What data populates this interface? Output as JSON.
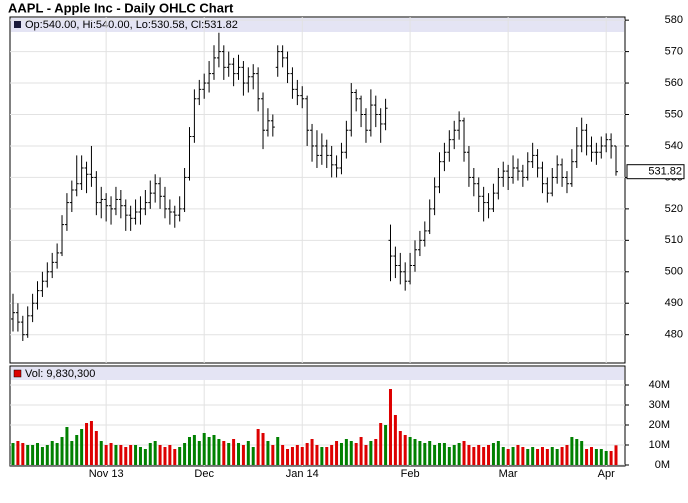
{
  "chart_data": {
    "type": "ohlc",
    "title": "AAPL - Apple Inc - Daily OHLC Chart",
    "price_legend": "Op:540.00, Hi:540.00, Lo:530.58, Cl:531.82",
    "volume_legend": "Vol: 9,830,300",
    "last_price_label": "531.82",
    "categories": [
      null,
      null,
      null,
      null,
      null,
      null,
      null,
      null,
      null,
      null,
      null,
      null,
      null,
      null,
      null,
      null,
      null,
      null,
      null,
      "Nov 13",
      null,
      null,
      null,
      null,
      null,
      null,
      null,
      null,
      null,
      null,
      null,
      null,
      null,
      null,
      null,
      null,
      null,
      null,
      null,
      "Dec",
      null,
      null,
      null,
      null,
      null,
      null,
      null,
      null,
      null,
      null,
      null,
      null,
      null,
      null,
      null,
      null,
      null,
      null,
      null,
      "Jan 14",
      null,
      null,
      null,
      null,
      null,
      null,
      null,
      null,
      null,
      null,
      null,
      null,
      null,
      null,
      null,
      null,
      null,
      null,
      null,
      null,
      null,
      "Feb",
      null,
      null,
      null,
      null,
      null,
      null,
      null,
      null,
      null,
      null,
      null,
      null,
      null,
      null,
      null,
      null,
      null,
      null,
      null,
      "Mar",
      null,
      null,
      null,
      null,
      null,
      null,
      null,
      null,
      null,
      null,
      null,
      null,
      null,
      null,
      null,
      null,
      null,
      null,
      null,
      "Apr",
      null,
      null
    ],
    "open": [
      485,
      487,
      484,
      480,
      486,
      490,
      494,
      497,
      500,
      503,
      506,
      515,
      522,
      526,
      528,
      533,
      531,
      530,
      522,
      523,
      521,
      520,
      523,
      521,
      518,
      517,
      519,
      520,
      522,
      525,
      528,
      524,
      520,
      519,
      518,
      520,
      530,
      543,
      555,
      558,
      560,
      563,
      568,
      570,
      565,
      566,
      563,
      565,
      560,
      562,
      563,
      555,
      545,
      548,
      565,
      570,
      568,
      563,
      558,
      556,
      555,
      545,
      540,
      537,
      540,
      537,
      534,
      533,
      538,
      545,
      557,
      555,
      550,
      545,
      553,
      550,
      547,
      510,
      505,
      502,
      500,
      497,
      502,
      507,
      510,
      513,
      520,
      527,
      535,
      538,
      542,
      545,
      548,
      538,
      530,
      528,
      524,
      522,
      520,
      525,
      530,
      532,
      530,
      533,
      532,
      530,
      535,
      537,
      533,
      528,
      525,
      530,
      534,
      530,
      528,
      535,
      540,
      545,
      540,
      538,
      538,
      540,
      542,
      540
    ],
    "high": [
      493,
      490,
      486,
      489,
      493,
      497,
      500,
      503,
      506,
      509,
      518,
      525,
      529,
      537,
      537,
      535,
      540,
      532,
      527,
      525,
      524,
      527,
      526,
      523,
      521,
      523,
      524,
      526,
      529,
      531,
      530,
      527,
      523,
      521,
      524,
      533,
      546,
      558,
      561,
      563,
      567,
      572,
      576,
      572,
      570,
      568,
      569,
      567,
      565,
      566,
      565,
      557,
      552,
      550,
      572,
      572,
      570,
      565,
      561,
      559,
      556,
      547,
      545,
      544,
      542,
      540,
      537,
      541,
      548,
      560,
      558,
      556,
      552,
      558,
      556,
      552,
      555,
      515,
      508,
      506,
      503,
      506,
      510,
      513,
      516,
      523,
      530,
      538,
      541,
      545,
      548,
      551,
      549,
      540,
      533,
      530,
      527,
      525,
      528,
      533,
      535,
      534,
      537,
      536,
      534,
      538,
      541,
      539,
      535,
      530,
      533,
      537,
      536,
      532,
      539,
      546,
      549,
      547,
      543,
      541,
      543,
      544,
      544,
      540
    ],
    "low": [
      481,
      481,
      478,
      479,
      484,
      488,
      492,
      495,
      498,
      501,
      505,
      513,
      519,
      524,
      526,
      525,
      527,
      518,
      517,
      516,
      515,
      518,
      517,
      513,
      513,
      515,
      515,
      518,
      520,
      522,
      520,
      517,
      515,
      514,
      516,
      519,
      529,
      541,
      553,
      555,
      557,
      561,
      565,
      561,
      562,
      559,
      561,
      556,
      557,
      558,
      551,
      539,
      543,
      543,
      562,
      565,
      560,
      555,
      553,
      552,
      540,
      535,
      533,
      534,
      533,
      530,
      530,
      531,
      536,
      543,
      551,
      546,
      541,
      543,
      546,
      541,
      545,
      497,
      498,
      496,
      494,
      496,
      500,
      505,
      508,
      512,
      518,
      525,
      532,
      535,
      539,
      542,
      535,
      527,
      524,
      519,
      516,
      517,
      519,
      523,
      527,
      526,
      528,
      529,
      527,
      529,
      533,
      530,
      525,
      522,
      524,
      528,
      527,
      525,
      527,
      533,
      538,
      537,
      535,
      534,
      536,
      538,
      536,
      530.58
    ],
    "close": [
      487,
      484,
      480,
      486,
      490,
      494,
      497,
      500,
      503,
      506,
      515,
      522,
      526,
      528,
      533,
      531,
      530,
      522,
      523,
      521,
      520,
      523,
      521,
      518,
      517,
      519,
      520,
      522,
      525,
      528,
      524,
      520,
      519,
      518,
      520,
      530,
      543,
      555,
      558,
      560,
      563,
      568,
      570,
      565,
      566,
      563,
      565,
      560,
      562,
      563,
      555,
      545,
      548,
      546,
      570,
      568,
      563,
      558,
      556,
      555,
      545,
      540,
      537,
      540,
      537,
      534,
      533,
      538,
      545,
      557,
      555,
      550,
      545,
      553,
      550,
      547,
      552,
      505,
      502,
      500,
      497,
      502,
      507,
      510,
      513,
      520,
      527,
      535,
      538,
      542,
      545,
      548,
      538,
      530,
      528,
      524,
      522,
      520,
      525,
      530,
      532,
      530,
      533,
      532,
      530,
      535,
      537,
      533,
      528,
      525,
      530,
      534,
      530,
      528,
      535,
      540,
      545,
      540,
      538,
      538,
      540,
      542,
      540,
      531.82
    ],
    "ylim": [
      471,
      581
    ],
    "yticks": [
      480,
      490,
      500,
      510,
      520,
      530,
      540,
      550,
      560,
      570,
      580
    ],
    "color": "#000000",
    "up_color": "#008000",
    "down_color": "#dd0000",
    "grid": true,
    "volume": {
      "values": [
        11,
        12,
        11,
        10,
        10,
        11,
        9,
        10,
        12,
        11,
        14,
        19,
        12,
        15,
        18,
        21,
        22,
        17,
        12,
        10,
        11,
        10,
        10,
        9,
        10,
        10,
        9,
        8,
        11,
        12,
        10,
        9,
        10,
        8,
        9,
        11,
        14,
        15,
        12,
        16,
        14,
        15,
        13,
        12,
        11,
        13,
        11,
        10,
        12,
        9,
        18,
        16,
        12,
        10,
        14,
        10,
        8,
        9,
        10,
        9,
        11,
        13,
        10,
        9,
        9,
        10,
        12,
        11,
        13,
        12,
        11,
        14,
        10,
        12,
        13,
        21,
        20,
        38,
        25,
        17,
        15,
        14,
        13,
        12,
        11,
        12,
        10,
        11,
        11,
        9,
        10,
        11,
        12,
        10,
        9,
        10,
        9,
        10,
        11,
        12,
        9,
        8,
        9,
        10,
        9,
        8,
        9,
        8,
        9,
        8,
        9,
        8,
        9,
        10,
        14,
        13,
        12,
        8,
        9,
        8,
        8,
        7,
        7,
        9.83
      ],
      "ylim": [
        0,
        50
      ],
      "yticks": [
        {
          "value": 0,
          "label": "0M"
        },
        {
          "value": 10,
          "label": "10M"
        },
        {
          "value": 20,
          "label": "20M"
        },
        {
          "value": 30,
          "label": "30M"
        },
        {
          "value": 40,
          "label": "40M"
        }
      ]
    }
  }
}
